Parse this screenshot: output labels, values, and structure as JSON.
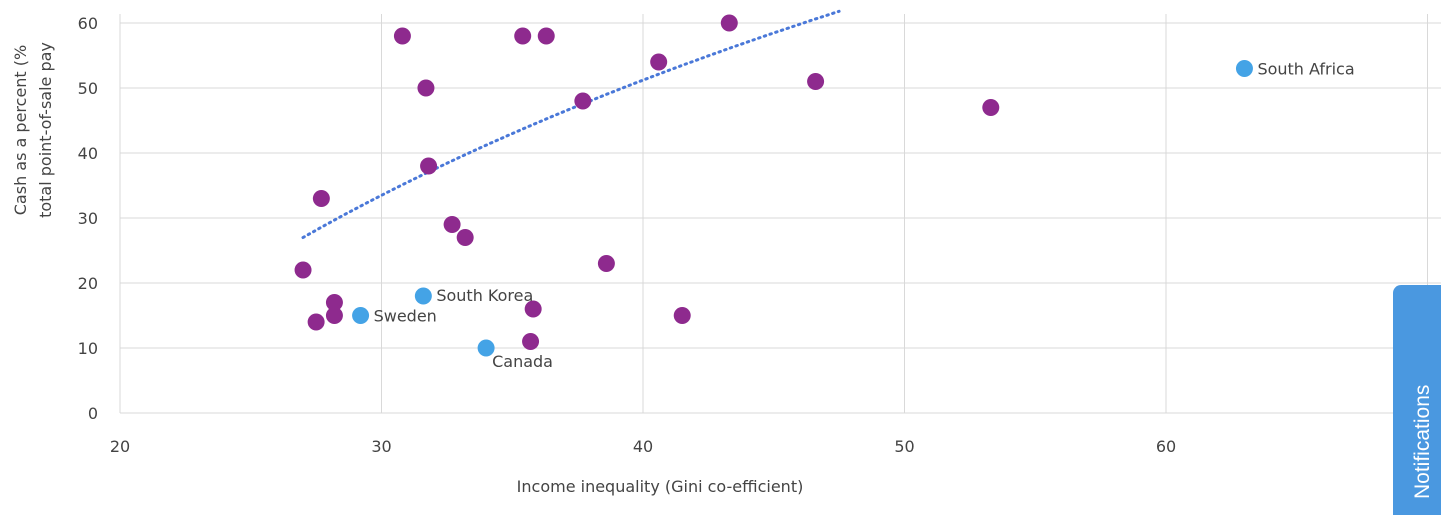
{
  "chart_data": {
    "type": "scatter",
    "xlabel": "Income inequality (Gini co-efficient)",
    "ylabel_lines": [
      "Cash as a percent (%",
      "total point-of-sale pay"
    ],
    "xlim": [
      20,
      68
    ],
    "ylim": [
      0,
      62
    ],
    "x_ticks": [
      20,
      30,
      40,
      50,
      60
    ],
    "y_ticks": [
      0,
      10,
      20,
      30,
      40,
      50,
      60
    ],
    "grid": "vertical and horizontal gridlines",
    "colors": {
      "points": "#8e2a8e",
      "highlighted": "#44a3e6",
      "trendline": "#4a78d8",
      "grid": "#d9d9d9"
    },
    "points": [
      {
        "x": 27.0,
        "y": 22
      },
      {
        "x": 27.5,
        "y": 14
      },
      {
        "x": 27.7,
        "y": 33
      },
      {
        "x": 28.2,
        "y": 17
      },
      {
        "x": 28.2,
        "y": 15
      },
      {
        "x": 30.8,
        "y": 58
      },
      {
        "x": 31.7,
        "y": 50
      },
      {
        "x": 31.8,
        "y": 38
      },
      {
        "x": 32.7,
        "y": 29
      },
      {
        "x": 33.2,
        "y": 27
      },
      {
        "x": 35.4,
        "y": 58
      },
      {
        "x": 35.7,
        "y": 11
      },
      {
        "x": 35.8,
        "y": 16
      },
      {
        "x": 36.3,
        "y": 58
      },
      {
        "x": 37.7,
        "y": 48
      },
      {
        "x": 38.6,
        "y": 23
      },
      {
        "x": 40.6,
        "y": 54
      },
      {
        "x": 41.5,
        "y": 15
      },
      {
        "x": 43.3,
        "y": 60
      },
      {
        "x": 46.6,
        "y": 51
      },
      {
        "x": 53.3,
        "y": 47
      }
    ],
    "highlighted_points": [
      {
        "label": "Sweden",
        "x": 29.2,
        "y": 15
      },
      {
        "label": "South Korea",
        "x": 31.6,
        "y": 18
      },
      {
        "label": "Canada",
        "x": 34.0,
        "y": 10
      },
      {
        "label": "South Africa",
        "x": 63.0,
        "y": 53
      }
    ],
    "trendline": {
      "type": "logarithmic",
      "style": "dotted",
      "x_range": [
        27.0,
        47.5
      ],
      "y_start": 27,
      "y_end": 61.8
    }
  },
  "notifications_tab": {
    "label": "Notifications"
  }
}
